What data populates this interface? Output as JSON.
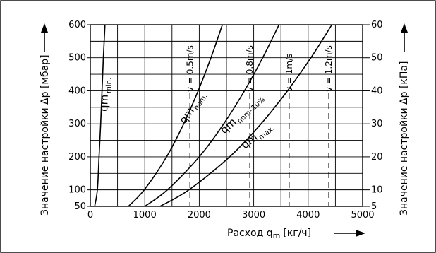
{
  "chart_data": {
    "type": "line",
    "xlabel": "Расход q",
    "xlabel_sub": "m",
    "xlabel_unit": "[кг/ч]",
    "ylabel_left": "Значение настройки Δp [мбар]",
    "ylabel_right": "Значение настройки Δp [кПа]",
    "xlim": [
      0,
      5000
    ],
    "ylim": [
      50,
      600
    ],
    "ylim_right": [
      5,
      60
    ],
    "x_ticks": [
      0,
      1000,
      2000,
      3000,
      4000,
      5000
    ],
    "y_ticks_left": [
      50,
      100,
      200,
      300,
      400,
      500,
      600
    ],
    "y_ticks_right": [
      5,
      10,
      20,
      30,
      40,
      50,
      60
    ],
    "grid": true,
    "series": [
      {
        "name": "qm",
        "sub": "min.",
        "points": [
          [
            80,
            50
          ],
          [
            130,
            100
          ],
          [
            160,
            200
          ],
          [
            190,
            300
          ],
          [
            215,
            400
          ],
          [
            240,
            500
          ],
          [
            270,
            600
          ]
        ]
      },
      {
        "name": "qm",
        "sub": "nom.",
        "points": [
          [
            700,
            50
          ],
          [
            990,
            100
          ],
          [
            1400,
            200
          ],
          [
            1715,
            300
          ],
          [
            1980,
            400
          ],
          [
            2215,
            500
          ],
          [
            2425,
            600
          ]
        ]
      },
      {
        "name": "qm",
        "sub": "nom–10%",
        "points": [
          [
            1000,
            50
          ],
          [
            1415,
            100
          ],
          [
            2000,
            200
          ],
          [
            2450,
            300
          ],
          [
            2830,
            400
          ],
          [
            3165,
            500
          ],
          [
            3465,
            600
          ]
        ]
      },
      {
        "name": "qm",
        "sub": "max.",
        "points": [
          [
            1280,
            50
          ],
          [
            1810,
            100
          ],
          [
            2560,
            200
          ],
          [
            3135,
            300
          ],
          [
            3620,
            400
          ],
          [
            4050,
            500
          ],
          [
            4435,
            600
          ]
        ]
      }
    ],
    "velocity_lines": [
      {
        "label": "v = 0.5m/s",
        "x": 1830
      },
      {
        "label": "v = 0.8m/s",
        "x": 2930
      },
      {
        "label": "v = 1m/s",
        "x": 3650
      },
      {
        "label": "v = 1.2m/s",
        "x": 4380
      }
    ]
  }
}
